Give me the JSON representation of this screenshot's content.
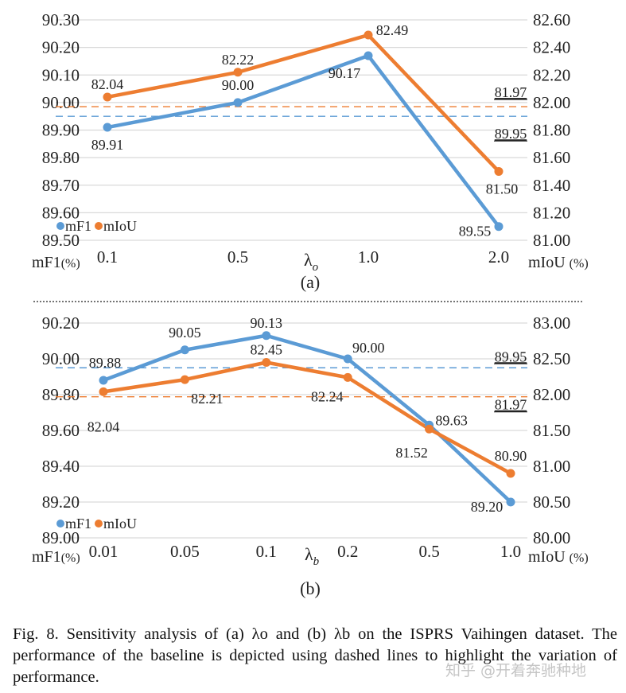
{
  "chart_data": [
    {
      "type": "line",
      "panel_label": "(a)",
      "xlabel": "λo",
      "categories": [
        "0.1",
        "0.5",
        "1.0",
        "2.0"
      ],
      "y_left": {
        "label": "mF1 (%)",
        "range": [
          89.5,
          90.3
        ],
        "ticks": [
          "90.30",
          "90.20",
          "90.10",
          "90.00",
          "89.90",
          "89.80",
          "89.70",
          "89.60",
          "89.50"
        ]
      },
      "y_right": {
        "label": "mIoU (%)",
        "range": [
          81.0,
          82.6
        ],
        "ticks": [
          "82.60",
          "82.40",
          "82.20",
          "82.00",
          "81.80",
          "81.60",
          "81.40",
          "81.20",
          "81.00"
        ]
      },
      "grid": true,
      "legend": "bottom-left",
      "series": [
        {
          "name": "mF1",
          "axis": "left",
          "color": "#5B9BD5",
          "values": [
            89.91,
            90.0,
            90.17,
            89.55
          ],
          "labels": [
            "89.91",
            "90.00",
            "90.17",
            "89.55"
          ]
        },
        {
          "name": "mIoU",
          "axis": "right",
          "color": "#ED7D31",
          "values": [
            82.04,
            82.22,
            82.49,
            81.5
          ],
          "labels": [
            "82.04",
            "82.22",
            "82.49",
            "81.50"
          ]
        }
      ],
      "baselines": [
        {
          "series": "mF1",
          "value": 89.95,
          "label": "89.95",
          "style": "dashed"
        },
        {
          "series": "mIoU",
          "value": 81.97,
          "label": "81.97",
          "style": "dashed"
        }
      ]
    },
    {
      "type": "line",
      "panel_label": "(b)",
      "xlabel": "λb",
      "categories": [
        "0.01",
        "0.05",
        "0.1",
        "0.2",
        "0.5",
        "1.0"
      ],
      "y_left": {
        "label": "mF1 (%)",
        "range": [
          89.0,
          90.2
        ],
        "ticks": [
          "90.20",
          "90.00",
          "89.80",
          "89.60",
          "89.40",
          "89.20",
          "89.00"
        ]
      },
      "y_right": {
        "label": "mIoU (%)",
        "range": [
          80.0,
          83.0
        ],
        "ticks": [
          "83.00",
          "82.50",
          "82.00",
          "81.50",
          "81.00",
          "80.50",
          "80.00"
        ]
      },
      "grid": true,
      "legend": "bottom-left",
      "series": [
        {
          "name": "mF1",
          "axis": "left",
          "color": "#5B9BD5",
          "values": [
            89.88,
            90.05,
            90.13,
            90.0,
            89.63,
            89.2
          ],
          "labels": [
            "89.88",
            "90.05",
            "90.13",
            "90.00",
            "89.63",
            "89.20"
          ]
        },
        {
          "name": "mIoU",
          "axis": "right",
          "color": "#ED7D31",
          "values": [
            82.04,
            82.21,
            82.45,
            82.24,
            81.52,
            80.9
          ],
          "labels": [
            "82.04",
            "82.21",
            "82.45",
            "82.24",
            "81.52",
            "80.90"
          ]
        }
      ],
      "baselines": [
        {
          "series": "mF1",
          "value": 89.95,
          "label": "89.95",
          "style": "dashed"
        },
        {
          "series": "mIoU",
          "value": 81.97,
          "label": "81.97",
          "style": "dashed"
        }
      ]
    }
  ],
  "caption": "Fig. 8.  Sensitivity analysis of (a) λo and (b) λb on the ISPRS Vaihingen dataset. The performance of the baseline is depicted using dashed lines to highlight the variation of performance.",
  "watermark": "知乎 @开着奔驰种地"
}
